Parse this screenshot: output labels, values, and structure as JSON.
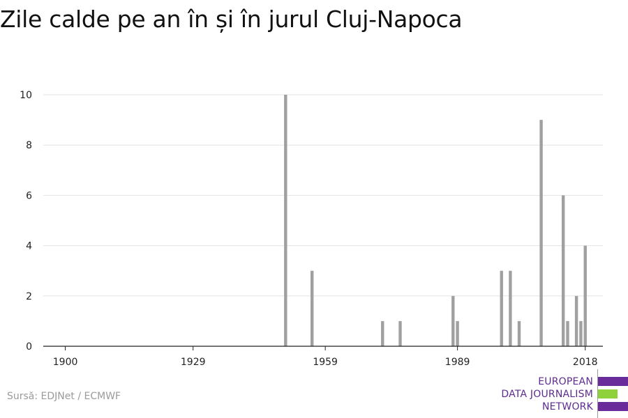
{
  "title": "Zile calde pe an în și în jurul Cluj-Napoca",
  "source": "Sursă: EDJNet / ECMWF",
  "logo": {
    "lines": [
      "EUROPEAN",
      "DATA JOURNALISM",
      "NETWORK"
    ],
    "colors": {
      "purple": "#6a2c9a",
      "green": "#8fd13a",
      "text": "#5d2a91"
    }
  },
  "chart_data": {
    "type": "bar",
    "xlabel": "",
    "ylabel": "",
    "xlim": [
      1895,
      2022
    ],
    "ylim": [
      0,
      10
    ],
    "x_ticks": [
      1900,
      1929,
      1959,
      1989,
      2018
    ],
    "y_ticks": [
      0,
      2,
      4,
      6,
      8,
      10
    ],
    "grid": true,
    "bar_color": "#a0a0a0",
    "points": [
      {
        "x": 1950,
        "y": 10
      },
      {
        "x": 1956,
        "y": 3
      },
      {
        "x": 1972,
        "y": 1
      },
      {
        "x": 1976,
        "y": 1
      },
      {
        "x": 1988,
        "y": 2
      },
      {
        "x": 1989,
        "y": 1
      },
      {
        "x": 1999,
        "y": 3
      },
      {
        "x": 2001,
        "y": 3
      },
      {
        "x": 2003,
        "y": 1
      },
      {
        "x": 2008,
        "y": 9
      },
      {
        "x": 2013,
        "y": 6
      },
      {
        "x": 2014,
        "y": 1
      },
      {
        "x": 2016,
        "y": 2
      },
      {
        "x": 2017,
        "y": 1
      },
      {
        "x": 2018,
        "y": 4
      }
    ]
  }
}
